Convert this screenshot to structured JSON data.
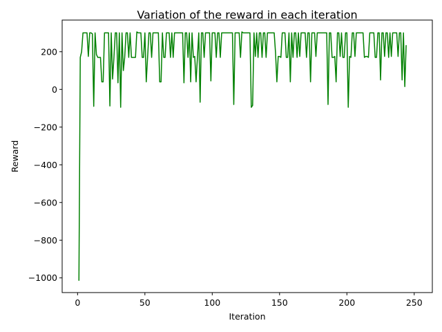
{
  "chart_data": {
    "type": "line",
    "title": "Variation of the reward in each iteration",
    "xlabel": "Iteration",
    "ylabel": "Reward",
    "xlim": [
      -11.45,
      263.45
    ],
    "ylim": [
      -1078,
      368
    ],
    "x_ticks": [
      0,
      50,
      100,
      150,
      200,
      250
    ],
    "y_ticks": [
      -1000,
      -800,
      -600,
      -400,
      -200,
      0,
      200
    ],
    "x_tick_labels": [
      "0",
      "50",
      "100",
      "150",
      "200",
      "250"
    ],
    "y_tick_labels": [
      "−1000",
      "−800",
      "−600",
      "−400",
      "−200",
      "0",
      "200"
    ],
    "grid": false,
    "series": [
      {
        "name": "reward",
        "color": "#008000",
        "x_start": 1,
        "values": [
          -1015,
          170,
          200,
          300,
          300,
          300,
          300,
          175,
          300,
          300,
          295,
          -90,
          300,
          185,
          170,
          170,
          170,
          40,
          40,
          300,
          300,
          300,
          300,
          -88,
          300,
          55,
          170,
          300,
          300,
          35,
          300,
          -95,
          300,
          100,
          170,
          300,
          300,
          170,
          300,
          170,
          170,
          170,
          170,
          305,
          300,
          300,
          300,
          170,
          170,
          300,
          40,
          170,
          300,
          300,
          170,
          300,
          300,
          300,
          300,
          300,
          40,
          40,
          300,
          170,
          170,
          300,
          300,
          300,
          170,
          300,
          170,
          300,
          300,
          300,
          300,
          300,
          300,
          300,
          35,
          300,
          300,
          170,
          300,
          40,
          300,
          170,
          175,
          40,
          170,
          300,
          -68,
          300,
          300,
          170,
          300,
          300,
          300,
          300,
          45,
          300,
          300,
          300,
          170,
          300,
          300,
          170,
          300,
          300,
          300,
          300,
          300,
          300,
          300,
          300,
          300,
          -80,
          300,
          300,
          300,
          300,
          170,
          305,
          300,
          300,
          300,
          300,
          300,
          300,
          -95,
          -85,
          300,
          175,
          300,
          170,
          300,
          300,
          170,
          300,
          300,
          170,
          300,
          300,
          300,
          300,
          300,
          300,
          195,
          40,
          175,
          175,
          170,
          300,
          300,
          300,
          170,
          170,
          300,
          40,
          300,
          170,
          300,
          300,
          170,
          300,
          175,
          300,
          300,
          300,
          300,
          170,
          300,
          300,
          40,
          300,
          300,
          300,
          175,
          300,
          300,
          300,
          300,
          300,
          300,
          300,
          300,
          -80,
          300,
          300,
          170,
          170,
          175,
          40,
          300,
          300,
          175,
          300,
          170,
          170,
          300,
          300,
          -95,
          175,
          170,
          300,
          300,
          175,
          300,
          300,
          300,
          300,
          300,
          300,
          170,
          175,
          175,
          170,
          300,
          300,
          300,
          300,
          170,
          170,
          300,
          300,
          50,
          300,
          300,
          175,
          300,
          300,
          170,
          300,
          175,
          300,
          300,
          300,
          300,
          175,
          300,
          300,
          50,
          300,
          15,
          235
        ]
      }
    ]
  }
}
